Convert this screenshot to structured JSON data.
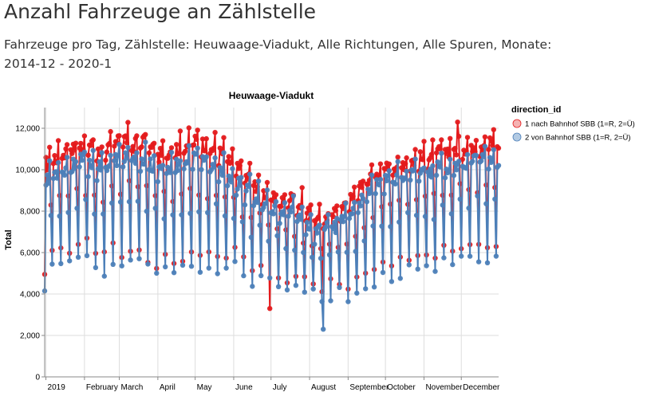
{
  "page": {
    "title": "Anzahl Fahrzeuge an Zählstelle",
    "subtitle": "Fahrzeuge pro Tag, Zählstelle: Heuwaage-Viadukt, Alle Richtungen, Alle Spuren, Monate: 2014-12 - 2020-1"
  },
  "chart_data": {
    "type": "line",
    "title": "Heuwaage-Viadukt",
    "ylabel": "Total",
    "xlabel": "",
    "ylim": [
      0,
      13000
    ],
    "xlim": [
      "2018-12-31",
      "2019-12-31"
    ],
    "yticks": [
      0,
      2000,
      4000,
      6000,
      8000,
      10000,
      12000
    ],
    "ytick_labels": [
      "0",
      "2,000",
      "4,000",
      "6,000",
      "8,000",
      "10,000",
      "12,000"
    ],
    "xticks": [
      {
        "label": "2019",
        "date": "2019-01-01"
      },
      {
        "label": "February",
        "date": "2019-02-01"
      },
      {
        "label": "March",
        "date": "2019-03-01"
      },
      {
        "label": "April",
        "date": "2019-04-01"
      },
      {
        "label": "May",
        "date": "2019-05-01"
      },
      {
        "label": "June",
        "date": "2019-06-01"
      },
      {
        "label": "July",
        "date": "2019-07-01"
      },
      {
        "label": "August",
        "date": "2019-08-01"
      },
      {
        "label": "September",
        "date": "2019-09-01"
      },
      {
        "label": "October",
        "date": "2019-10-01"
      },
      {
        "label": "November",
        "date": "2019-11-01"
      },
      {
        "label": "December",
        "date": "2019-12-01"
      }
    ],
    "grid": true,
    "legend": {
      "title": "direction_id",
      "position": "top-right"
    },
    "series": [
      {
        "name": "1 nach Bahnhof SBB (1=R, 2=Ü)",
        "color": "#e41a1c",
        "weekday_level": [
          10300,
          10600,
          10850,
          11000,
          11200,
          11100,
          10800,
          11050,
          11300,
          11500,
          11200,
          11400,
          11000,
          10700,
          10900,
          11050,
          11200,
          11350,
          11250,
          11050,
          10800,
          10400,
          10000,
          9650,
          9300,
          8900,
          8550,
          8400,
          8600,
          8300,
          7900,
          7500,
          7600,
          7850,
          8100,
          8550,
          9100,
          9600,
          9900,
          10100,
          10250,
          10350,
          10450,
          10550,
          10650,
          10800,
          10950,
          11000,
          11100,
          11200,
          11250,
          11300,
          11250,
          11100,
          10700,
          7700
        ],
        "weekend_level": [
          6200,
          6450,
          6300,
          6500,
          6350,
          6000,
          5900,
          6250,
          6000,
          6200,
          6100,
          5800,
          5500,
          6200,
          5700,
          5900,
          6100,
          6000,
          5700,
          5900,
          5800,
          6000,
          5500,
          5200,
          5300,
          5500,
          5000,
          4800,
          4900,
          4700,
          4600,
          4300,
          4500,
          4700,
          4400,
          4800,
          5000,
          5200,
          5400,
          5500,
          5600,
          5800,
          5900,
          6200,
          6000,
          6100,
          6250,
          6400,
          6400,
          6550,
          6300,
          6500,
          6600,
          6350,
          6000,
          5400
        ]
      },
      {
        "name": "2 von Bahnhof SBB (1=R, 2=Ü)",
        "color": "#4c7fb8",
        "weekday_level": [
          9600,
          9850,
          10050,
          10200,
          10400,
          10300,
          10050,
          10250,
          10500,
          10650,
          10400,
          10550,
          10200,
          9900,
          10100,
          10250,
          10400,
          10500,
          10450,
          10250,
          10000,
          9650,
          9300,
          8950,
          8650,
          8300,
          7950,
          7800,
          8000,
          7700,
          7350,
          7000,
          7100,
          7300,
          7550,
          7950,
          8450,
          8950,
          9200,
          9400,
          9550,
          9650,
          9750,
          9850,
          9950,
          10050,
          10200,
          10250,
          10300,
          10400,
          10450,
          10500,
          10450,
          10300,
          9900,
          7100
        ],
        "weekend_level": [
          5500,
          5700,
          5600,
          5750,
          5650,
          5350,
          5200,
          5500,
          5300,
          5450,
          5400,
          5100,
          4850,
          5450,
          5000,
          5200,
          5400,
          5300,
          5000,
          5200,
          5100,
          5300,
          4850,
          4600,
          4700,
          4850,
          4400,
          4250,
          4300,
          4150,
          4050,
          3800,
          4000,
          4150,
          3900,
          4250,
          4450,
          4600,
          4800,
          4850,
          4950,
          5150,
          5250,
          5500,
          5300,
          5400,
          5550,
          5650,
          5650,
          5800,
          5550,
          5750,
          5850,
          5600,
          5300,
          4800
        ]
      }
    ],
    "notes_visible": {
      "min_blue_value": 2300,
      "max_red_value": 12300
    }
  }
}
